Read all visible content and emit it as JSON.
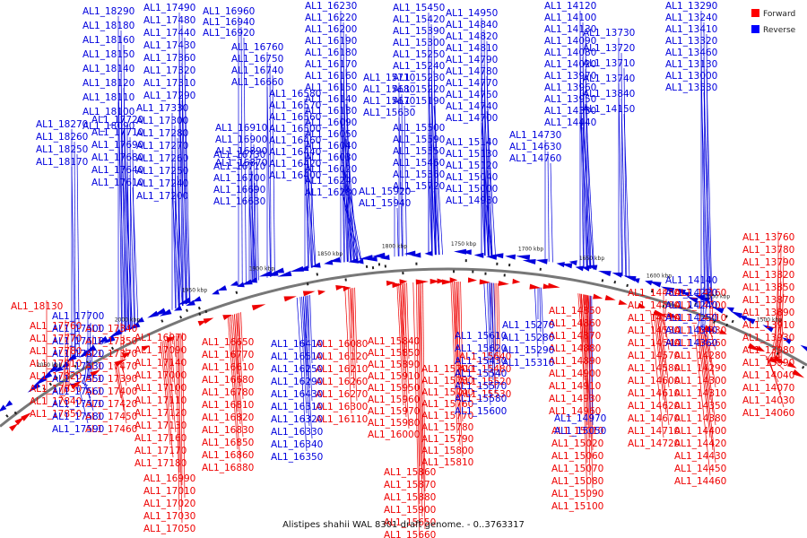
{
  "caption": "Alistipes shahii WAL 8301 draft genome. - 0..3763317",
  "legend": [
    {
      "label": "Forward",
      "color": "#ff0000"
    },
    {
      "label": "Reverse",
      "color": "#0000ff"
    }
  ],
  "colors": {
    "forward": "#ee0000",
    "reverse": "#0000dd",
    "backbone": "#777777"
  },
  "scale_marks": [
    "2050 kbp",
    "2000 kbp",
    "1950 kbp",
    "1900 kbp",
    "1850 kbp",
    "1800 kbp",
    "1750 kbp",
    "1700 kbp",
    "1650 kbp",
    "1600 kbp",
    "1550 kbp",
    "1500 kbp"
  ],
  "reverse_label_columns": [
    [
      "AL1_18290",
      "AL1_18180",
      "AL1_18160",
      "AL1_18150",
      "AL1_18140",
      "AL1_18120",
      "AL1_18110",
      "AL1_18100",
      "AL1_18090"
    ],
    [
      "AL1_18270",
      "AL1_18260",
      "AL1_18250",
      "AL1_18170"
    ],
    [
      "AL1_17490",
      "AL1_17480",
      "AL1_17440",
      "AL1_17430",
      "AL1_17360",
      "AL1_17320",
      "AL1_17310",
      "AL1_17290"
    ],
    [
      "AL1_17720",
      "AL1_17710",
      "AL1_17690",
      "AL1_17680",
      "AL1_17640",
      "AL1_17610"
    ],
    [
      "AL1_17330",
      "AL1_17300",
      "AL1_17280",
      "AL1_17270",
      "AL1_17260",
      "AL1_17250",
      "AL1_17240",
      "AL1_17200"
    ],
    [
      "AL1_16960",
      "AL1_16940",
      "AL1_16920"
    ],
    [
      "AL1_16760",
      "AL1_16750",
      "AL1_16740",
      "AL1_16660"
    ],
    [
      "AL1_16910",
      "AL1_16900",
      "AL1_16890",
      "AL1_16870"
    ],
    [
      "AL1_16730",
      "AL1_16710",
      "AL1_16700",
      "AL1_16690",
      "AL1_16630"
    ],
    [
      "AL1_16580",
      "AL1_16570",
      "AL1_16560",
      "AL1_16500",
      "AL1_16460",
      "AL1_16440",
      "AL1_16420",
      "AL1_16400"
    ],
    [
      "AL1_16230",
      "AL1_16220",
      "AL1_16200",
      "AL1_16190",
      "AL1_16180",
      "AL1_16170",
      "AL1_16160",
      "AL1_16150",
      "AL1_16140",
      "AL1_16130",
      "AL1_16090",
      "AL1_16050",
      "AL1_16040",
      "AL1_16030",
      "AL1_16020",
      "AL1_16240",
      "AL1_16280"
    ],
    [
      "AL1_15920",
      "AL1_15940"
    ],
    [
      "AL1_15450",
      "AL1_15420",
      "AL1_15390",
      "AL1_15300",
      "AL1_15250",
      "AL1_15240",
      "AL1_15230",
      "AL1_15220",
      "AL1_15190"
    ],
    [
      "AL1_15710",
      "AL1_15680",
      "AL1_15670",
      "AL1_15630"
    ],
    [
      "AL1_14950",
      "AL1_14840",
      "AL1_14820",
      "AL1_14810",
      "AL1_14790",
      "AL1_14780",
      "AL1_14770",
      "AL1_14750",
      "AL1_14740",
      "AL1_14700"
    ],
    [
      "AL1_15500",
      "AL1_15590",
      "AL1_15550",
      "AL1_15460",
      "AL1_15360",
      "AL1_15720"
    ],
    [
      "AL1_15140",
      "AL1_15130",
      "AL1_15120",
      "AL1_15040",
      "AL1_15000",
      "AL1_14980"
    ],
    [
      "AL1_14730",
      "AL1_14630",
      "AL1_14760"
    ],
    [
      "AL1_14120",
      "AL1_14100",
      "AL1_14130",
      "AL1_14090",
      "AL1_14080",
      "AL1_14020",
      "AL1_13970",
      "AL1_13960",
      "AL1_13950",
      "AL1_14330",
      "AL1_14440"
    ],
    [
      "AL1_13730",
      "AL1_13720",
      "AL1_13710",
      "AL1_13740",
      "AL1_13840",
      "AL1_14150"
    ],
    [
      "AL1_13290",
      "AL1_13240",
      "AL1_13410",
      "AL1_13320",
      "AL1_13460",
      "AL1_13130",
      "AL1_13000",
      "AL1_13530"
    ]
  ],
  "forward_label_columns": [
    [
      "AL1_18130"
    ],
    [
      "AL1_17760",
      "AL1_17770",
      "AL1_17780",
      "AL1_17810",
      "AL1_17820",
      "AL1_17830",
      "AL1_17840",
      "AL1_17850"
    ],
    [
      "AL1_17340",
      "AL1_17350",
      "AL1_17370",
      "AL1_17470",
      "AL1_17390",
      "AL1_17400",
      "AL1_17420",
      "AL1_17450",
      "AL1_17460"
    ],
    [
      "AL1_16970",
      "AL1_17090",
      "AL1_17140",
      "AL1_17000",
      "AL1_17100",
      "AL1_17110",
      "AL1_17120",
      "AL1_17130",
      "AL1_17160",
      "AL1_17170",
      "AL1_17180"
    ],
    [
      "AL1_16650",
      "AL1_16770",
      "AL1_16610",
      "AL1_16680",
      "AL1_16780",
      "AL1_16810",
      "AL1_16820",
      "AL1_16830",
      "AL1_16850",
      "AL1_16860",
      "AL1_16880"
    ],
    [
      "AL1_16990",
      "AL1_17010",
      "AL1_17020",
      "AL1_17030",
      "AL1_17050"
    ],
    [
      "AL1_16080",
      "AL1_16120",
      "AL1_16210",
      "AL1_16260",
      "AL1_16270",
      "AL1_16300",
      "AL1_16110"
    ],
    [
      "AL1_15840",
      "AL1_15850",
      "AL1_15890",
      "AL1_15910",
      "AL1_15950",
      "AL1_15960",
      "AL1_15970",
      "AL1_15980",
      "AL1_16000"
    ],
    [
      "AL1_15700",
      "AL1_15730",
      "AL1_15740",
      "AL1_15760",
      "AL1_15770",
      "AL1_15780",
      "AL1_15790",
      "AL1_15800",
      "AL1_15810"
    ],
    [
      "AL1_15860",
      "AL1_15870",
      "AL1_15880",
      "AL1_15900",
      "AL1_15650",
      "AL1_15660",
      "AL1_15750"
    ],
    [
      "AL1_15640",
      "AL1_15480",
      "AL1_15520",
      "AL1_15530"
    ],
    [
      "AL1_14850",
      "AL1_14860",
      "AL1_14870",
      "AL1_14880",
      "AL1_14890",
      "AL1_14900",
      "AL1_14910",
      "AL1_14930",
      "AL1_14960"
    ],
    [
      "AL1_15010",
      "AL1_15020",
      "AL1_15060",
      "AL1_15070",
      "AL1_15080",
      "AL1_15090",
      "AL1_15100"
    ],
    [
      "AL1_14480",
      "AL1_14500",
      "AL1_14510",
      "AL1_14530",
      "AL1_14540",
      "AL1_14570",
      "AL1_14580",
      "AL1_14600",
      "AL1_14610",
      "AL1_14620",
      "AL1_14670",
      "AL1_14710",
      "AL1_14720"
    ],
    [
      "AL1_14160",
      "AL1_14200",
      "AL1_14210",
      "AL1_14230",
      "AL1_14260",
      "AL1_14280",
      "AL1_14290",
      "AL1_14300",
      "AL1_14310",
      "AL1_14350",
      "AL1_14380",
      "AL1_14400",
      "AL1_14420",
      "AL1_14430",
      "AL1_14450",
      "AL1_14460"
    ],
    [
      "AL1_13760",
      "AL1_13780",
      "AL1_13790",
      "AL1_13820",
      "AL1_13850",
      "AL1_13870",
      "AL1_13890",
      "AL1_13910",
      "AL1_13930",
      "AL1_13980",
      "AL1_13990",
      "AL1_14040",
      "AL1_14070",
      "AL1_14030",
      "AL1_14060"
    ]
  ],
  "reverse_lower_label_columns": [
    [
      "AL1_17700",
      "AL1_17500",
      "AL1_17510",
      "AL1_17520",
      "AL1_17530",
      "AL1_17550",
      "AL1_17560",
      "AL1_17570",
      "AL1_17580",
      "AL1_17590"
    ],
    [
      "AL1_16410",
      "AL1_16510",
      "AL1_16250",
      "AL1_16290",
      "AL1_16430",
      "AL1_16310",
      "AL1_16320",
      "AL1_16330",
      "AL1_16340",
      "AL1_16350"
    ],
    [
      "AL1_15610",
      "AL1_15620",
      "AL1_15430",
      "AL1_15540",
      "AL1_15570",
      "AL1_15580",
      "AL1_15600"
    ],
    [
      "AL1_15270",
      "AL1_15280",
      "AL1_15290",
      "AL1_15310"
    ],
    [
      "AL1_14970",
      "AL1_15050"
    ],
    [
      "AL1_14140",
      "AL1_14220",
      "AL1_14240",
      "AL1_14250",
      "AL1_14340",
      "AL1_14360"
    ]
  ]
}
